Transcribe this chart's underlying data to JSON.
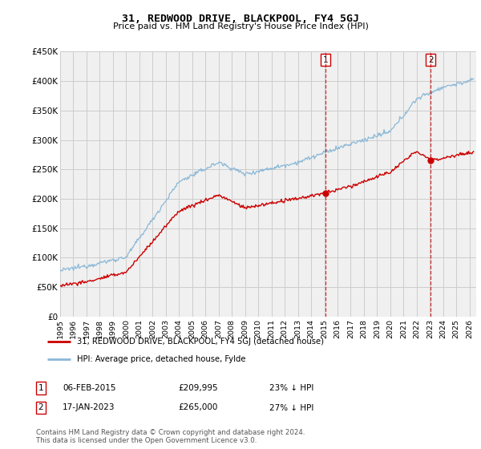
{
  "title": "31, REDWOOD DRIVE, BLACKPOOL, FY4 5GJ",
  "subtitle": "Price paid vs. HM Land Registry's House Price Index (HPI)",
  "ylabel_ticks": [
    "£0",
    "£50K",
    "£100K",
    "£150K",
    "£200K",
    "£250K",
    "£300K",
    "£350K",
    "£400K",
    "£450K"
  ],
  "ytick_vals": [
    0,
    50000,
    100000,
    150000,
    200000,
    250000,
    300000,
    350000,
    400000,
    450000
  ],
  "ylim": [
    0,
    450000
  ],
  "xlim_start": 1995.0,
  "xlim_end": 2026.5,
  "hpi_color": "#89b8d8",
  "price_color": "#cc0000",
  "grid_color": "#cccccc",
  "background_color": "#f0f0f0",
  "legend_label_red": "31, REDWOOD DRIVE, BLACKPOOL, FY4 5GJ (detached house)",
  "legend_label_blue": "HPI: Average price, detached house, Fylde",
  "sale1_date": "06-FEB-2015",
  "sale1_price": "£209,995",
  "sale1_hpi": "23% ↓ HPI",
  "sale1_year": 2015.1,
  "sale1_value": 209995,
  "sale2_date": "17-JAN-2023",
  "sale2_price": "£265,000",
  "sale2_hpi": "27% ↓ HPI",
  "sale2_year": 2023.05,
  "sale2_value": 265000,
  "dashed_line_color": "#cc0000",
  "footnote": "Contains HM Land Registry data © Crown copyright and database right 2024.\nThis data is licensed under the Open Government Licence v3.0."
}
